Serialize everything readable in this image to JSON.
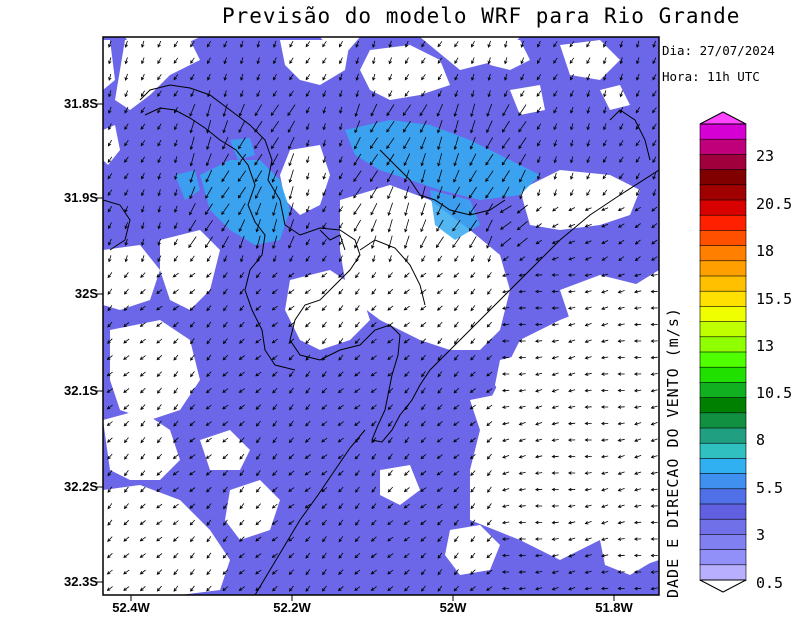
{
  "header": {
    "title": "Previsão do modelo WRF para Rio Grande",
    "date": "Dia: 27/07/2024",
    "hour": "Hora: 11h UTC"
  },
  "axes": {
    "lat_labels": [
      "31.8S",
      "31.9S",
      "32S",
      "32.1S",
      "32.2S",
      "32.3S"
    ],
    "lon_labels": [
      "52.4W",
      "52.2W",
      "52W",
      "51.8W"
    ]
  },
  "colorbar": {
    "title": "VELOCIDADE E DIRECAO DO VENTO (m/s)",
    "title_visible": "DADE E DIRECAO DO VENTO (m/s)",
    "labels": [
      "23",
      "20.5",
      "18",
      "15.5",
      "13",
      "10.5",
      "8",
      "5.5",
      "3",
      "0.5"
    ],
    "colors": [
      "#d400d4",
      "#c0007a",
      "#a0003c",
      "#800000",
      "#a00000",
      "#d80000",
      "#ff2000",
      "#ff5000",
      "#ff8000",
      "#ffa000",
      "#ffc000",
      "#ffe000",
      "#f0ff00",
      "#c0ff00",
      "#90ff00",
      "#50ff00",
      "#20e000",
      "#10b020",
      "#008000",
      "#109040",
      "#20a080",
      "#30c0c0",
      "#30b0f0",
      "#4090f0",
      "#5070e8",
      "#6060e0",
      "#7070e8",
      "#8080f0",
      "#9090f8",
      "#b8b0ff"
    ]
  },
  "map": {
    "fill_color": "#6b67e8",
    "fast_wind_color": "#35a8f0",
    "coast_color": "#000000"
  }
}
